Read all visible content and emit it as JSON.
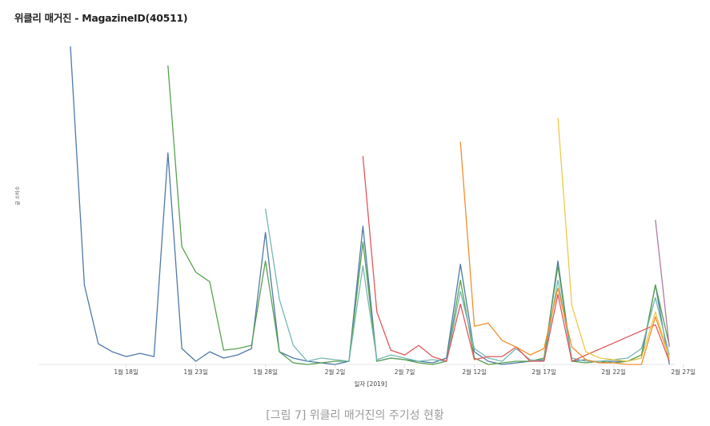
{
  "title": "위클리 매거진 - MagazineID(40511)",
  "caption": "[그림 7] 위클리 매거진의 주기성 현황",
  "chart_data": {
    "type": "line",
    "title": "위클리 매거진 - MagazineID(40511)",
    "xlabel": "일자 [2019]",
    "ylabel": "글 소비수",
    "x_range": [
      "2019-01-12",
      "2019-03-01"
    ],
    "ylim": [
      0,
      100
    ],
    "y_tick_labels": false,
    "grid": false,
    "legend": "none",
    "x_ticks": [
      {
        "date": "2019-01-18",
        "label": "1월 18일"
      },
      {
        "date": "2019-01-23",
        "label": "1월 23일"
      },
      {
        "date": "2019-01-28",
        "label": "1월 28일"
      },
      {
        "date": "2019-02-02",
        "label": "2월 2일"
      },
      {
        "date": "2019-02-07",
        "label": "2월 7일"
      },
      {
        "date": "2019-02-12",
        "label": "2월 12일"
      },
      {
        "date": "2019-02-17",
        "label": "2월 17일"
      },
      {
        "date": "2019-02-22",
        "label": "2월 22일"
      },
      {
        "date": "2019-02-27",
        "label": "2월 27일"
      }
    ],
    "series": [
      {
        "color": "#4e79a7",
        "points": [
          [
            "2019-01-14",
            100
          ],
          [
            "2019-01-15",
            25
          ],
          [
            "2019-01-16",
            6.5
          ],
          [
            "2019-01-17",
            4
          ],
          [
            "2019-01-18",
            2.5
          ],
          [
            "2019-01-19",
            3.5
          ],
          [
            "2019-01-20",
            2.5
          ],
          [
            "2019-01-21",
            66.5
          ],
          [
            "2019-01-22",
            5
          ],
          [
            "2019-01-23",
            1
          ],
          [
            "2019-01-24",
            4
          ],
          [
            "2019-01-25",
            2
          ],
          [
            "2019-01-26",
            3
          ],
          [
            "2019-01-27",
            5
          ],
          [
            "2019-01-28",
            41.5
          ],
          [
            "2019-01-29",
            4
          ],
          [
            "2019-01-30",
            2
          ],
          [
            "2019-01-31",
            1
          ],
          [
            "2019-02-01",
            0.5
          ],
          [
            "2019-02-02",
            0
          ],
          [
            "2019-02-03",
            1
          ],
          [
            "2019-02-04",
            43.5
          ],
          [
            "2019-02-05",
            1
          ],
          [
            "2019-02-06",
            2
          ],
          [
            "2019-02-07",
            1.5
          ],
          [
            "2019-02-08",
            1
          ],
          [
            "2019-02-09",
            0.5
          ],
          [
            "2019-02-10",
            2
          ],
          [
            "2019-02-11",
            31.5
          ],
          [
            "2019-02-12",
            4
          ],
          [
            "2019-02-13",
            1
          ],
          [
            "2019-02-14",
            0
          ],
          [
            "2019-02-15",
            0.5
          ],
          [
            "2019-02-16",
            1
          ],
          [
            "2019-02-17",
            1.5
          ],
          [
            "2019-02-18",
            32.5
          ],
          [
            "2019-02-19",
            1
          ],
          [
            "2019-02-20",
            1.5
          ],
          [
            "2019-02-21",
            0.5
          ],
          [
            "2019-02-22",
            1
          ],
          [
            "2019-02-23",
            1
          ],
          [
            "2019-02-24",
            2
          ],
          [
            "2019-02-25",
            25
          ],
          [
            "2019-02-26",
            0
          ]
        ]
      },
      {
        "color": "#59a14f",
        "points": [
          [
            "2019-01-21",
            94
          ],
          [
            "2019-01-22",
            37
          ],
          [
            "2019-01-23",
            29
          ],
          [
            "2019-01-24",
            26
          ],
          [
            "2019-01-25",
            4.5
          ],
          [
            "2019-01-26",
            5
          ],
          [
            "2019-01-27",
            6
          ],
          [
            "2019-01-28",
            32.5
          ],
          [
            "2019-01-29",
            4
          ],
          [
            "2019-01-30",
            0.5
          ],
          [
            "2019-01-31",
            0
          ],
          [
            "2019-02-01",
            0.5
          ],
          [
            "2019-02-02",
            1
          ],
          [
            "2019-02-03",
            1
          ],
          [
            "2019-02-04",
            38.5
          ],
          [
            "2019-02-05",
            1
          ],
          [
            "2019-02-06",
            2
          ],
          [
            "2019-02-07",
            1.5
          ],
          [
            "2019-02-08",
            0.5
          ],
          [
            "2019-02-09",
            0
          ],
          [
            "2019-02-10",
            1
          ],
          [
            "2019-02-11",
            26.5
          ],
          [
            "2019-02-12",
            2
          ],
          [
            "2019-02-13",
            0
          ],
          [
            "2019-02-14",
            0.5
          ],
          [
            "2019-02-15",
            1
          ],
          [
            "2019-02-16",
            1
          ],
          [
            "2019-02-17",
            2
          ],
          [
            "2019-02-18",
            31
          ],
          [
            "2019-02-19",
            1
          ],
          [
            "2019-02-20",
            0.5
          ],
          [
            "2019-02-21",
            1
          ],
          [
            "2019-02-22",
            0.5
          ],
          [
            "2019-02-23",
            1
          ],
          [
            "2019-02-24",
            3
          ],
          [
            "2019-02-25",
            25
          ],
          [
            "2019-02-26",
            6
          ]
        ]
      },
      {
        "color": "#76b7b2",
        "points": [
          [
            "2019-01-28",
            49
          ],
          [
            "2019-01-29",
            20.5
          ],
          [
            "2019-01-30",
            6
          ],
          [
            "2019-01-31",
            1
          ],
          [
            "2019-02-01",
            2
          ],
          [
            "2019-02-02",
            1.5
          ],
          [
            "2019-02-03",
            1
          ],
          [
            "2019-02-04",
            31
          ],
          [
            "2019-02-05",
            1.5
          ],
          [
            "2019-02-06",
            3
          ],
          [
            "2019-02-07",
            2
          ],
          [
            "2019-02-08",
            1
          ],
          [
            "2019-02-09",
            1.5
          ],
          [
            "2019-02-10",
            1
          ],
          [
            "2019-02-11",
            23
          ],
          [
            "2019-02-12",
            5
          ],
          [
            "2019-02-13",
            2
          ],
          [
            "2019-02-14",
            1
          ],
          [
            "2019-02-15",
            5
          ],
          [
            "2019-02-16",
            1.5
          ],
          [
            "2019-02-17",
            1
          ],
          [
            "2019-02-18",
            26.5
          ],
          [
            "2019-02-19",
            2
          ],
          [
            "2019-02-20",
            1
          ],
          [
            "2019-02-21",
            1
          ],
          [
            "2019-02-22",
            1.5
          ],
          [
            "2019-02-23",
            2
          ],
          [
            "2019-02-24",
            5
          ],
          [
            "2019-02-25",
            21
          ],
          [
            "2019-02-26",
            3
          ]
        ]
      },
      {
        "color": "#e15759",
        "points": [
          [
            "2019-02-04",
            65.5
          ],
          [
            "2019-02-05",
            16.5
          ],
          [
            "2019-02-06",
            4.5
          ],
          [
            "2019-02-07",
            3
          ],
          [
            "2019-02-08",
            6
          ],
          [
            "2019-02-09",
            2.5
          ],
          [
            "2019-02-10",
            1
          ],
          [
            "2019-02-11",
            19
          ],
          [
            "2019-02-12",
            1.5
          ],
          [
            "2019-02-13",
            2.5
          ],
          [
            "2019-02-14",
            2.5
          ],
          [
            "2019-02-15",
            5.5
          ],
          [
            "2019-02-16",
            1
          ],
          [
            "2019-02-17",
            1
          ],
          [
            "2019-02-18",
            22
          ],
          [
            "2019-02-19",
            1
          ],
          [
            "2019-02-25",
            12.5
          ],
          [
            "2019-02-26",
            1
          ]
        ]
      },
      {
        "color": "#f28e2b",
        "points": [
          [
            "2019-02-11",
            70
          ],
          [
            "2019-02-12",
            12
          ],
          [
            "2019-02-13",
            13
          ],
          [
            "2019-02-14",
            7.5
          ],
          [
            "2019-02-15",
            5.5
          ],
          [
            "2019-02-16",
            3
          ],
          [
            "2019-02-17",
            5
          ],
          [
            "2019-02-18",
            24
          ],
          [
            "2019-02-19",
            5.5
          ],
          [
            "2019-02-20",
            1.5
          ],
          [
            "2019-02-21",
            0.5
          ],
          [
            "2019-02-22",
            0.5
          ],
          [
            "2019-02-23",
            0
          ],
          [
            "2019-02-24",
            0
          ],
          [
            "2019-02-25",
            15
          ],
          [
            "2019-02-26",
            2
          ]
        ]
      },
      {
        "color": "#edc948",
        "points": [
          [
            "2019-02-18",
            77.5
          ],
          [
            "2019-02-19",
            18.5
          ],
          [
            "2019-02-20",
            4
          ],
          [
            "2019-02-21",
            2
          ],
          [
            "2019-02-22",
            1.5
          ],
          [
            "2019-02-23",
            1
          ],
          [
            "2019-02-24",
            2
          ],
          [
            "2019-02-25",
            16.5
          ],
          [
            "2019-02-26",
            2
          ]
        ]
      },
      {
        "color": "#b07aa1",
        "points": [
          [
            "2019-02-25",
            45.5
          ],
          [
            "2019-02-26",
            5.5
          ]
        ]
      }
    ]
  }
}
